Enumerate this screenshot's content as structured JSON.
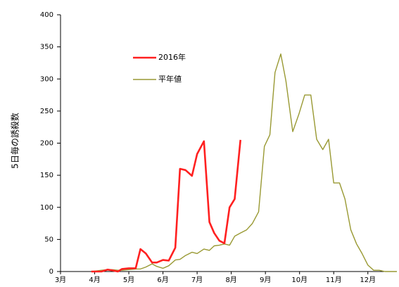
{
  "chart_data": {
    "type": "line",
    "ylabel": "5日毎の誘殺数",
    "ylim": [
      0,
      400
    ],
    "yticks": [
      0,
      50,
      100,
      150,
      200,
      250,
      300,
      350,
      400
    ],
    "xlim": [
      3,
      12.85
    ],
    "months": [
      {
        "x": 3,
        "label": "3月"
      },
      {
        "x": 4,
        "label": "4月"
      },
      {
        "x": 5,
        "label": "5月"
      },
      {
        "x": 6,
        "label": "6月"
      },
      {
        "x": 7,
        "label": "7月"
      },
      {
        "x": 8,
        "label": "8月"
      },
      {
        "x": 9,
        "label": "9月"
      },
      {
        "x": 10,
        "label": "10月"
      },
      {
        "x": 11,
        "label": "11月"
      },
      {
        "x": 12,
        "label": "12月"
      }
    ],
    "legend_position": "upper-left",
    "series": [
      {
        "name": "2016年",
        "color": "#ff2020",
        "points": [
          [
            3.9,
            0
          ],
          [
            4.06,
            0
          ],
          [
            4.2,
            0
          ],
          [
            4.38,
            3
          ],
          [
            4.5,
            2
          ],
          [
            4.68,
            0
          ],
          [
            4.8,
            4
          ],
          [
            5.0,
            5
          ],
          [
            5.2,
            5
          ],
          [
            5.34,
            35
          ],
          [
            5.5,
            28
          ],
          [
            5.68,
            14
          ],
          [
            5.82,
            14
          ],
          [
            6.0,
            18
          ],
          [
            6.17,
            17
          ],
          [
            6.36,
            37
          ],
          [
            6.5,
            160
          ],
          [
            6.66,
            158
          ],
          [
            6.85,
            149
          ],
          [
            7.0,
            183
          ],
          [
            7.2,
            203
          ],
          [
            7.36,
            77
          ],
          [
            7.5,
            60
          ],
          [
            7.65,
            48
          ],
          [
            7.8,
            44
          ],
          [
            7.95,
            100
          ],
          [
            8.1,
            113
          ],
          [
            8.27,
            205
          ]
        ]
      },
      {
        "name": "平年値",
        "color": "#999933",
        "points": [
          [
            3.9,
            0
          ],
          [
            4.06,
            1
          ],
          [
            4.2,
            2
          ],
          [
            4.38,
            3
          ],
          [
            4.5,
            3
          ],
          [
            4.68,
            2
          ],
          [
            4.8,
            2
          ],
          [
            5.0,
            3
          ],
          [
            5.2,
            4
          ],
          [
            5.34,
            4
          ],
          [
            5.5,
            7
          ],
          [
            5.68,
            12
          ],
          [
            5.82,
            8
          ],
          [
            6.0,
            5
          ],
          [
            6.17,
            9
          ],
          [
            6.36,
            18
          ],
          [
            6.5,
            19
          ],
          [
            6.66,
            25
          ],
          [
            6.85,
            30
          ],
          [
            7.0,
            28
          ],
          [
            7.2,
            35
          ],
          [
            7.36,
            33
          ],
          [
            7.5,
            40
          ],
          [
            7.65,
            41
          ],
          [
            7.8,
            43
          ],
          [
            7.95,
            41
          ],
          [
            8.1,
            55
          ],
          [
            8.27,
            60
          ],
          [
            8.45,
            65
          ],
          [
            8.62,
            75
          ],
          [
            8.8,
            93
          ],
          [
            8.97,
            195
          ],
          [
            9.13,
            213
          ],
          [
            9.28,
            310
          ],
          [
            9.45,
            339
          ],
          [
            9.6,
            297
          ],
          [
            9.8,
            218
          ],
          [
            9.98,
            245
          ],
          [
            10.15,
            275
          ],
          [
            10.33,
            275
          ],
          [
            10.5,
            206
          ],
          [
            10.68,
            190
          ],
          [
            10.85,
            206
          ],
          [
            11.0,
            138
          ],
          [
            11.17,
            138
          ],
          [
            11.33,
            113
          ],
          [
            11.5,
            65
          ],
          [
            11.67,
            43
          ],
          [
            11.83,
            28
          ],
          [
            12.0,
            10
          ],
          [
            12.17,
            2
          ],
          [
            12.33,
            2
          ],
          [
            12.5,
            0
          ],
          [
            12.67,
            0
          ],
          [
            12.85,
            0
          ]
        ]
      }
    ]
  }
}
